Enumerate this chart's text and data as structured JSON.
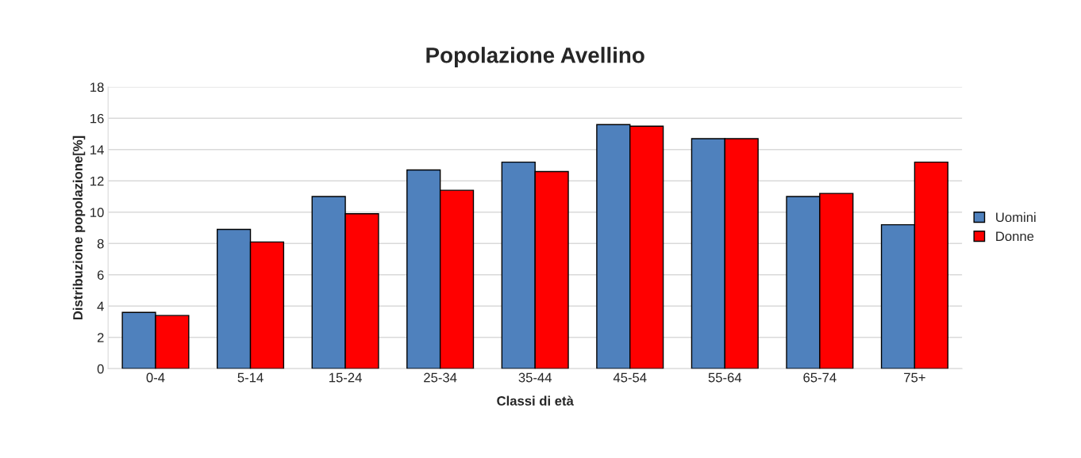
{
  "chart_data": {
    "type": "bar",
    "title": "Popolazione Avellino",
    "xlabel": "Classi di età",
    "ylabel": "Distribuzione popolazione[%]",
    "categories": [
      "0-4",
      "5-14",
      "15-24",
      "25-34",
      "35-44",
      "45-54",
      "55-64",
      "65-74",
      "75+"
    ],
    "series": [
      {
        "name": "Uomini",
        "color": "#4f81bd",
        "values": [
          3.6,
          8.9,
          11.0,
          12.7,
          13.2,
          15.6,
          14.7,
          11.0,
          9.2
        ]
      },
      {
        "name": "Donne",
        "color": "#ff0000",
        "values": [
          3.4,
          8.1,
          9.9,
          11.4,
          12.6,
          15.5,
          14.7,
          11.2,
          13.2
        ]
      }
    ],
    "ylim": [
      0,
      18
    ],
    "yticks": [
      0,
      2,
      4,
      6,
      8,
      10,
      12,
      14,
      16,
      18
    ],
    "grid": "y",
    "legend": "right"
  }
}
